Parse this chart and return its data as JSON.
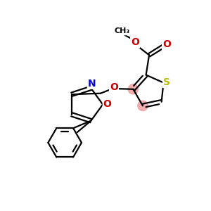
{
  "bg_color": "#ffffff",
  "bond_color": "#000000",
  "S_color": "#bbbb00",
  "N_color": "#0000cc",
  "O_color": "#cc0000",
  "highlight_color": "#f0a0a0",
  "figsize": [
    3.0,
    3.0
  ],
  "dpi": 100,
  "xlim": [
    0,
    10
  ],
  "ylim": [
    0,
    10
  ]
}
